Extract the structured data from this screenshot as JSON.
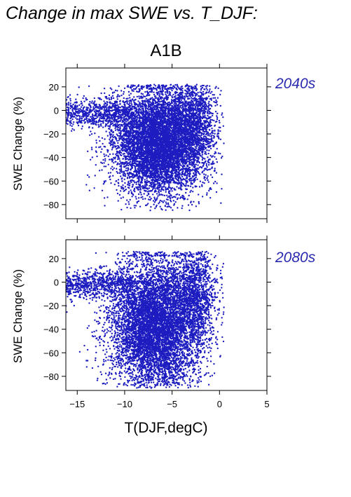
{
  "figure": {
    "title": "Change in max SWE vs. T_DJF:",
    "scenario": "A1B",
    "xlabel": "T(DJF,degC)"
  },
  "colors": {
    "points": "#1c1cc0",
    "period_label": "#2a2ab0",
    "frame": "#000000"
  },
  "chart_data": [
    {
      "type": "scatter",
      "period": "2040s",
      "xlim": [
        -16.2,
        5
      ],
      "ylim": [
        -92,
        36
      ],
      "x_ticks": [
        -15,
        -10,
        -5,
        0,
        5
      ],
      "y_ticks": [
        20,
        0,
        -20,
        -40,
        -60,
        -80
      ],
      "x_tick_labels": [],
      "ylabel": "SWE Change (%)",
      "point_count_approx": 9000,
      "distribution": {
        "center_x": -6.5,
        "x_range": [
          -16.2,
          0.5
        ],
        "y_max": 22,
        "y_min": -85,
        "typical_y_range": [
          -60,
          15
        ],
        "outliers": [
          [
            -13.7,
            -68
          ],
          [
            -13.2,
            -66
          ],
          [
            -13.9,
            -55
          ],
          [
            -7.3,
            -85
          ]
        ]
      }
    },
    {
      "type": "scatter",
      "period": "2080s",
      "xlim": [
        -16.2,
        5
      ],
      "ylim": [
        -92,
        36
      ],
      "x_ticks": [
        -15,
        -10,
        -5,
        0,
        5
      ],
      "y_ticks": [
        20,
        0,
        -20,
        -40,
        -60,
        -80
      ],
      "x_tick_labels": [
        "−15",
        "−10",
        "−5",
        "0",
        "5"
      ],
      "ylabel": "SWE Change (%)",
      "point_count_approx": 9000,
      "distribution": {
        "center_x": -6.8,
        "x_range": [
          -16.2,
          0.5
        ],
        "y_max": 26,
        "y_min": -90,
        "typical_y_range": [
          -80,
          15
        ],
        "outliers": [
          [
            -14.0,
            -72
          ],
          [
            -13.4,
            -73
          ],
          [
            -11.0,
            -82
          ],
          [
            -7.2,
            -90
          ]
        ]
      }
    }
  ]
}
